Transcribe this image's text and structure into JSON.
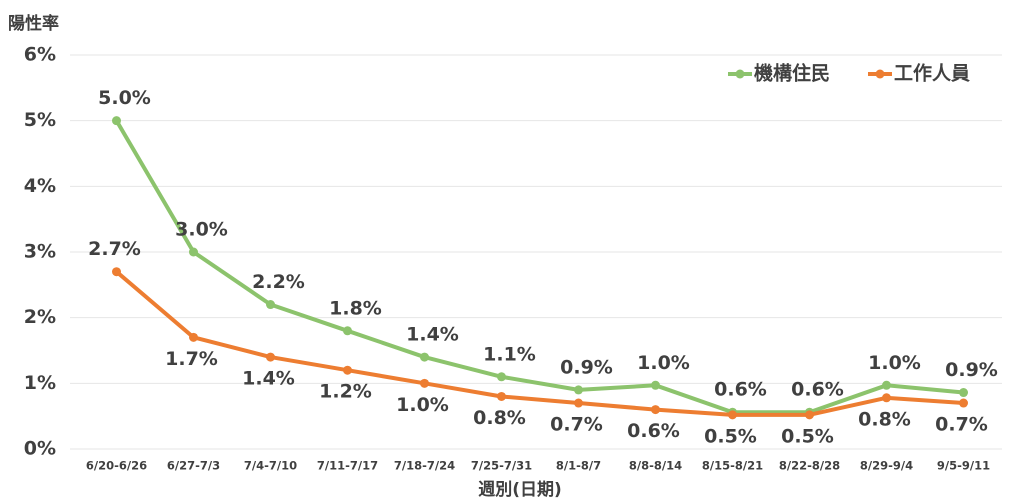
{
  "chart_data": {
    "type": "line",
    "y_axis_label": "陽性率",
    "x_axis_label": "週別(日期)",
    "categories": [
      "6/20-6/26",
      "6/27-7/3",
      "7/4-7/10",
      "7/11-7/17",
      "7/18-7/24",
      "7/25-7/31",
      "8/1-8/7",
      "8/8-8/14",
      "8/15-8/21",
      "8/22-8/28",
      "8/29-9/4",
      "9/5-9/11"
    ],
    "series": [
      {
        "name": "機構住民",
        "color": "#8cc36c",
        "values": [
          5.0,
          3.0,
          2.2,
          1.8,
          1.4,
          1.1,
          0.9,
          0.97,
          0.56,
          0.56,
          0.97,
          0.86
        ],
        "value_labels": [
          "5.0%",
          "3.0%",
          "2.2%",
          "1.8%",
          "1.4%",
          "1.1%",
          "0.9%",
          "1.0%",
          "0.6%",
          "0.6%",
          "1.0%",
          "0.9%"
        ]
      },
      {
        "name": "工作人員",
        "color": "#ed7d31",
        "values": [
          2.7,
          1.7,
          1.4,
          1.2,
          1.0,
          0.8,
          0.7,
          0.6,
          0.52,
          0.52,
          0.78,
          0.7
        ],
        "value_labels": [
          "2.7%",
          "1.7%",
          "1.4%",
          "1.2%",
          "1.0%",
          "0.8%",
          "0.7%",
          "0.6%",
          "0.5%",
          "0.5%",
          "0.8%",
          "0.7%"
        ]
      }
    ],
    "ylim": [
      0,
      6
    ],
    "yticks": [
      {
        "value": 0,
        "label": "0%"
      },
      {
        "value": 1,
        "label": "1%"
      },
      {
        "value": 2,
        "label": "2%"
      },
      {
        "value": 3,
        "label": "3%"
      },
      {
        "value": 4,
        "label": "4%"
      },
      {
        "value": 5,
        "label": "5%"
      },
      {
        "value": 6,
        "label": "6%"
      }
    ],
    "grid": true,
    "legend": "top-right"
  }
}
